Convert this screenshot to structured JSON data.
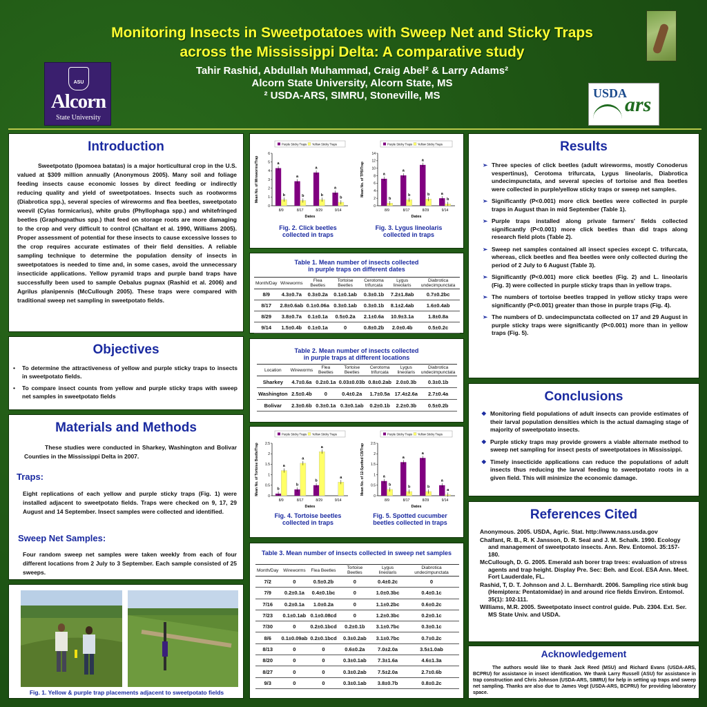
{
  "header": {
    "title_line1": "Monitoring Insects in Sweetpotatoes with Sweep Net and Sticky Traps",
    "title_line2": "across the Mississippi Delta: A comparative study",
    "authors": "Tahir Rashid, Abdullah Muhammad, Craig Abel² & Larry Adams²",
    "affil1": "Alcorn State University, Alcorn State, MS",
    "affil2": "² USDA-ARS, SIMRU, Stoneville, MS"
  },
  "logos": {
    "alcorn_seal": "ASU",
    "alcorn_name": "Alcorn",
    "alcorn_sub": "State University",
    "usda": "USDA",
    "ars": "ars"
  },
  "introduction": {
    "title": "Introduction",
    "text": "Sweetpotato (Ipomoea batatas) is a major horticultural crop in the U.S. valued at $309 million annually (Anonymous 2005). Many soil and foliage feeding insects cause economic losses by direct feeding or indirectly reducing quality and yield of sweetpotatoes. Insects such as rootworms (Diabrotica spp.), several species of wireworms and flea beetles, sweetpotato weevil (Cylas formicarius), white grubs (Phyllophaga spp.) and whitefringed beetles (Graphognathus spp.) that feed on storage roots are more damaging to the crop and very difficult to control (Chalfant et al. 1990, Williams 2005). Proper assessment of potential for these insects to cause excessive losses to the crop requires accurate estimates of their field densities. A reliable sampling technique to determine the population density of insects in sweetpotatoes is needed to time and, in some cases, avoid the unnecessary insecticide applications. Yellow pyramid traps and purple band traps have successfully been used to sample Oebalus pugnax (Rashid et al. 2006) and Agrilus planipennis (McCullough 2005). These traps were compared with traditional sweep net sampling in sweetpotato fields."
  },
  "objectives": {
    "title": "Objectives",
    "items": [
      "To determine the attractiveness of yellow and purple sticky traps to insects in sweetpotato fields.",
      "To compare insect counts from yellow and purple sticky traps with sweep net samples in sweetpotato fields"
    ]
  },
  "methods": {
    "title": "Materials and Methods",
    "intro": "These studies were conducted in Sharkey, Washington and Bolivar Counties in the Mississippi Delta in 2007.",
    "traps_title": "Traps:",
    "traps_text": "Eight replications of each yellow and purple sticky traps (Fig. 1) were installed adjacent to sweetpotato fields. Traps were checked on 9, 17, 29 August and 14 September. Insect samples were collected and identified.",
    "sweep_title": "Sweep Net Samples:",
    "sweep_text": "Four random sweep net samples were taken weekly from each of four different locations from 2 July to 3 September. Each sample consisted of 25 sweeps."
  },
  "fig1": {
    "caption": "Fig. 1. Yellow & purple trap placements adjacent to sweetpotato fields"
  },
  "legend": {
    "purple": "Purple Sticky Traps",
    "yellow": "Yellow Sticky Traps"
  },
  "colors": {
    "purple": "#800080",
    "yellow": "#ffff66"
  },
  "chart_data": [
    {
      "id": "fig2",
      "type": "bar",
      "caption_line1": "Fig. 2. Click beetles",
      "caption_line2": "collected in traps",
      "xlabel": "Dates",
      "ylabel": "Mean No. of Wireworms/Trap",
      "categories": [
        "8/9",
        "8/17",
        "8/29",
        "9/14"
      ],
      "ylim": [
        0,
        6
      ],
      "yticks": [
        "0",
        "1",
        "2",
        "3",
        "4",
        "5",
        "6"
      ],
      "series": [
        {
          "name": "Purple Sticky Traps",
          "values": [
            4.3,
            2.8,
            3.8,
            1.5
          ],
          "labels": [
            "a",
            "a",
            "a",
            "a"
          ]
        },
        {
          "name": "Yellow Sticky Traps",
          "values": [
            0.7,
            0.6,
            0.7,
            0.4
          ],
          "labels": [
            "b",
            "b",
            "b",
            "b"
          ]
        }
      ]
    },
    {
      "id": "fig3",
      "type": "bar",
      "caption_line1": "Fig. 3. Lygus lineolaris",
      "caption_line2": "collected in traps",
      "xlabel": "Dates",
      "ylabel": "Mean No. of TPB/Trap",
      "categories": [
        "8/9",
        "8/17",
        "8/29",
        "9/14"
      ],
      "ylim": [
        0,
        14
      ],
      "yticks": [
        "0",
        "2",
        "4",
        "6",
        "8",
        "10",
        "12",
        "14"
      ],
      "series": [
        {
          "name": "Purple Sticky Traps",
          "values": [
            7.2,
            8.1,
            10.9,
            2.0
          ],
          "labels": [
            "a",
            "a",
            "a",
            "a"
          ]
        },
        {
          "name": "Yellow Sticky Traps",
          "values": [
            0.7,
            1.6,
            1.8,
            0.5
          ],
          "labels": [
            "b",
            "b",
            "b",
            "b"
          ]
        }
      ]
    },
    {
      "id": "fig4",
      "type": "bar",
      "caption_line1": "Fig. 4. Tortoise beetles",
      "caption_line2": "collected in traps",
      "xlabel": "Dates",
      "ylabel": "Mean No. of Tortoise Beetle/Trap",
      "categories": [
        "8/9",
        "8/17",
        "8/29",
        "9/14"
      ],
      "ylim": [
        0,
        2.5
      ],
      "yticks": [
        "0",
        "0.25",
        "0.5",
        "0.75",
        "1",
        "1.25",
        "1.5",
        "1.75",
        "2",
        "2.25",
        "2.5"
      ],
      "tick_labels_shown": [
        "0",
        "0.5",
        "1",
        "1.5",
        "2",
        "2.5"
      ],
      "series": [
        {
          "name": "Purple Sticky Traps",
          "values": [
            0.1,
            0.3,
            0.5,
            0.0
          ],
          "labels": [
            "b",
            "b",
            "b",
            ""
          ]
        },
        {
          "name": "Yellow Sticky Traps",
          "values": [
            1.2,
            1.55,
            2.1,
            0.65
          ],
          "labels": [
            "a",
            "a",
            "a",
            "a"
          ]
        }
      ]
    },
    {
      "id": "fig5",
      "type": "bar",
      "caption_line1": "Fig. 5. Spotted cucumber",
      "caption_line2": "beetles collected in traps",
      "xlabel": "Dates",
      "ylabel": "Mean No. of 12-Spotted CB/Trap",
      "categories": [
        "8/9",
        "8/17",
        "8/29",
        "9/14"
      ],
      "ylim": [
        0,
        2.5
      ],
      "yticks": [
        "0",
        "0.5",
        "1",
        "1.5",
        "2",
        "2.5"
      ],
      "series": [
        {
          "name": "Purple Sticky Traps",
          "values": [
            0.7,
            1.6,
            1.8,
            0.5
          ],
          "labels": [
            "a",
            "a",
            "a",
            "a"
          ]
        },
        {
          "name": "Yellow Sticky Traps",
          "values": [
            0.3,
            0.2,
            0.2,
            0.05
          ],
          "labels": [
            "b",
            "b",
            "b",
            "a"
          ]
        }
      ]
    }
  ],
  "table1": {
    "caption_line1": "Table 1. Mean number of insects collected",
    "caption_line2": "in purple traps on different dates",
    "headers": [
      "Month/Day",
      "Wireworms",
      "Flea Beetles",
      "Tortoise Beetles",
      "Cerotoma trifurcata",
      "Lygus lineolaris",
      "Diabrotica undecimpunctata"
    ],
    "rows": [
      [
        "8/9",
        "4.3±0.7a",
        "0.3±0.2a",
        "0.1±0.1ab",
        "0.3±0.1b",
        "7.2±1.8ab",
        "0.7±0.2bc"
      ],
      [
        "8/17",
        "2.8±0.6ab",
        "0.1±0.06a",
        "0.3±0.1ab",
        "0.3±0.1b",
        "8.1±2.4ab",
        "1.6±0.4ab"
      ],
      [
        "8/29",
        "3.8±0.7a",
        "0.1±0.1a",
        "0.5±0.2a",
        "2.1±0.6a",
        "10.9±3.1a",
        "1.8±0.8a"
      ],
      [
        "9/14",
        "1.5±0.4b",
        "0.1±0.1a",
        "0",
        "0.8±0.2b",
        "2.0±0.4b",
        "0.5±0.2c"
      ]
    ]
  },
  "table2": {
    "caption_line1": "Table 2. Mean number of insects collected",
    "caption_line2": "in purple traps at different locations",
    "headers": [
      "Location",
      "Wireworms",
      "Flea Beetles",
      "Tortoise Beetles",
      "Cerotoma trifurcata",
      "Lygus lineolaris",
      "Diabrotica undecimpunctata"
    ],
    "rows": [
      [
        "Sharkey",
        "4.7±0.6a",
        "0.2±0.1a",
        "0.03±0.03b",
        "0.8±0.2ab",
        "2.0±0.3b",
        "0.3±0.1b"
      ],
      [
        "Washington",
        "2.5±0.4b",
        "0",
        "0.4±0.2a",
        "1.7±0.5a",
        "17.4±2.6a",
        "2.7±0.4a"
      ],
      [
        "Bolivar",
        "2.3±0.6b",
        "0.3±0.1a",
        "0.3±0.1ab",
        "0.2±0.1b",
        "2.2±0.3b",
        "0.5±0.2b"
      ]
    ]
  },
  "table3": {
    "caption": "Table 3. Mean number of insects collected in sweep net samples",
    "headers": [
      "Month/Day",
      "Wireworms",
      "Flea Beetles",
      "Tortoise Beetles",
      "Lygus lineolaris",
      "Diabrotica undecimpunctata"
    ],
    "rows": [
      [
        "7/2",
        "0",
        "0.5±0.2b",
        "0",
        "0.4±0.2c",
        "0"
      ],
      [
        "7/9",
        "0.2±0.1a",
        "0.4±0.1bc",
        "0",
        "1.0±0.3bc",
        "0.4±0.1c"
      ],
      [
        "7/16",
        "0.2±0.1a",
        "1.0±0.2a",
        "0",
        "1.1±0.2bc",
        "0.6±0.2c"
      ],
      [
        "7/23",
        "0.1±0.1ab",
        "0.1±0.08cd",
        "0",
        "1.2±0.3bc",
        "0.2±0.1c"
      ],
      [
        "7/30",
        "0",
        "0.2±0.1bcd",
        "0.2±0.1b",
        "3.1±0.7bc",
        "0.3±0.1c"
      ],
      [
        "8/6",
        "0.1±0.09ab",
        "0.2±0.1bcd",
        "0.3±0.2ab",
        "3.1±0.7bc",
        "0.7±0.2c"
      ],
      [
        "8/13",
        "0",
        "0",
        "0.6±0.2a",
        "7.0±2.0a",
        "3.5±1.0ab"
      ],
      [
        "8/20",
        "0",
        "0",
        "0.3±0.1ab",
        "7.3±1.6a",
        "4.6±1.3a"
      ],
      [
        "8/27",
        "0",
        "0",
        "0.3±0.2ab",
        "7.5±2.0a",
        "2.7±0.6b"
      ],
      [
        "9/3",
        "0",
        "0",
        "0.3±0.1ab",
        "3.8±0.7b",
        "0.8±0.2c"
      ]
    ]
  },
  "results": {
    "title": "Results",
    "items": [
      "Three species of click beetles (adult wireworms, mostly Conoderus vespertinus), Cerotoma trifurcata, Lygus lineolaris, Diabrotica undecimpunctata, and several species of tortoise and flea beetles were collected in purple/yellow sticky traps or sweep net samples.",
      "Significantly (P<0.001) more click beetles were collected in purple traps in August than in mid September (Table 1).",
      "Purple traps installed along private farmers' fields collected significantly (P<0.001) more click beetles than did traps along research field plots (Table 2).",
      "Sweep net samples contained all insect species except C. trifurcata, whereas, click beetles and flea beetles were only collected during the period of 2 July to 6 August (Table 3).",
      "Significantly (P<0.001) more click beetles (Fig. 2) and L. lineolaris (Fig. 3) were collected in purple sticky traps than in yellow traps.",
      "The numbers of tortoise beetles trapped in yellow sticky traps were significantly (P<0.001) greater than those in purple traps (Fig. 4).",
      "The numbers of D. undecimpunctata collected on 17 and 29 August in purple sticky traps were significantly (P<0.001) more than in yellow traps (Fig. 5)."
    ]
  },
  "conclusions": {
    "title": "Conclusions",
    "items": [
      "Monitoring field populations of adult insects can provide estimates of their larval population densities which is the actual damaging stage of majority of sweetpotato insects.",
      "Purple sticky traps may provide growers a viable alternate method to sweep net sampling for insect pests of sweetpotatoes in Mississippi.",
      "Timely insecticide applications can reduce the populations of adult insects thus reducing the larval feeding to sweetpotato roots in a given field. This will minimize the economic damage."
    ]
  },
  "references": {
    "title": "References Cited",
    "items": [
      "Anonymous. 2005. USDA, Agric. Stat. http://www.nass.usda.gov",
      "Chalfant, R. B., R. K Jansson, D. R. Seal and J. M. Schalk. 1990. Ecology and management of sweetpotato insects. Ann. Rev. Entomol. 35:157-180.",
      "McCullough, D. G. 2005. Emerald ash borer trap trees: evaluation of stress agents and trap height. Display Pre. Sec: Beh. and Ecol. ESA Ann. Meet. Fort Lauderdale, FL.",
      "Rashid, T, D. T. Johnson and J. L. Bernhardt. 2006. Sampling rice stink bug (Hemiptera: Pentatomidae) in and around rice fields Environ. Entomol. 35(1): 102-111.",
      "Williams, M.R. 2005. Sweetpotato insect control guide. Pub. 2304. Ext. Ser. MS State Univ. and USDA."
    ]
  },
  "acknowledgement": {
    "title": "Acknowledgement",
    "text": "The authors would like to thank Jack Reed (MSU) and Richard Evans (USDA-ARS, BCPRU) for assistance in insect identification. We thank Larry Russell (ASU) for assistance in trap construction and Chris Johnson (USDA-ARS, SIMRU) for help in setting up traps and sweep net sampling. Thanks are also due to James Vogt (USDA-ARS, BCPRU) for providing laboratory space."
  }
}
